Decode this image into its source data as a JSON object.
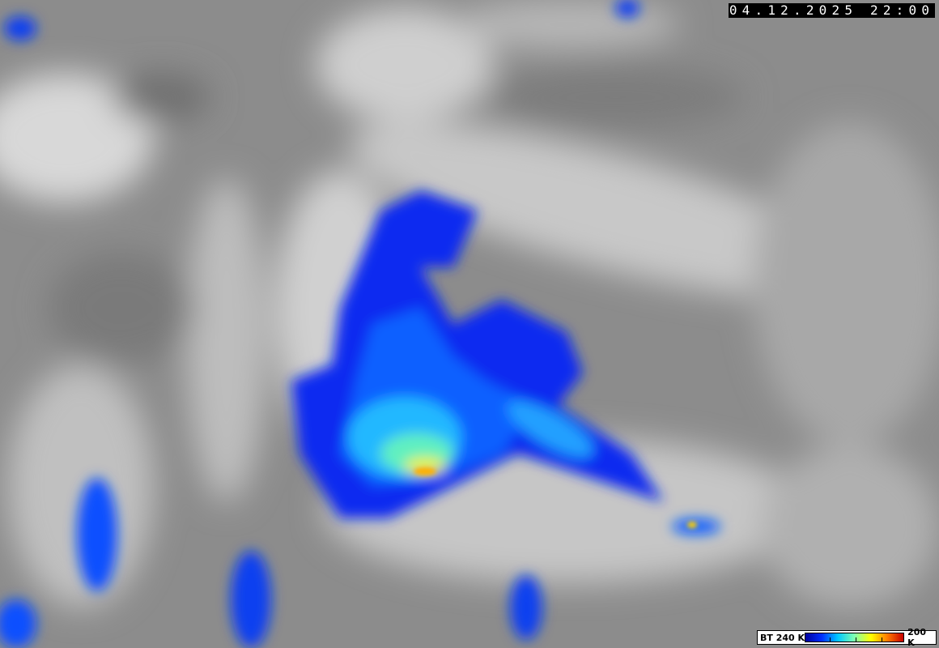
{
  "timestamp": "04.12.2025 22:00",
  "colorbar": {
    "label_min": "BT 240 K",
    "label_max": "200 K",
    "colors": [
      "#0000a0",
      "#0030ff",
      "#00c8ff",
      "#80ffb0",
      "#ffff00",
      "#ff8000",
      "#c80000"
    ]
  }
}
